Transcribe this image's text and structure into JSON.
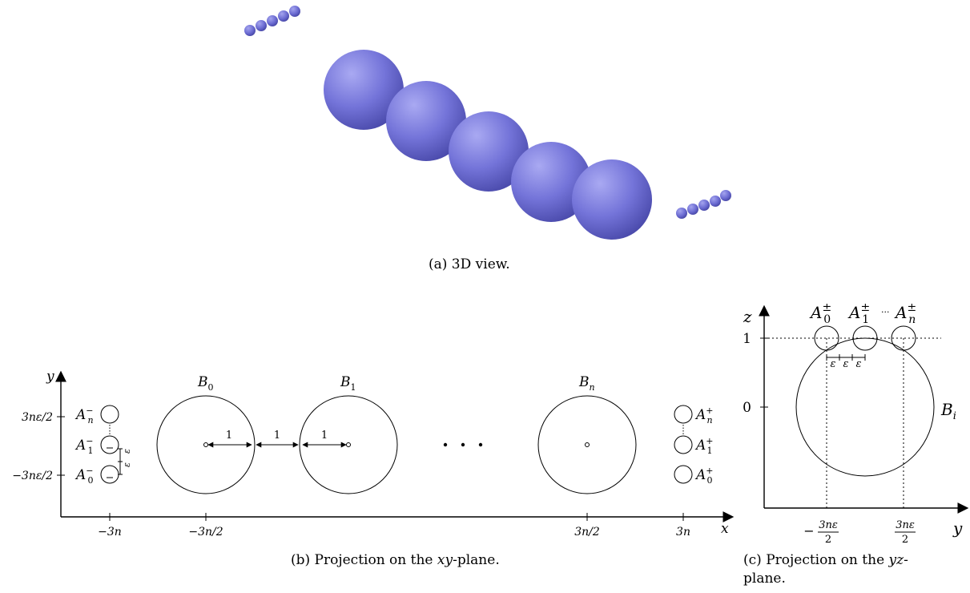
{
  "colors": {
    "sphere_base": "#6f6fd8",
    "sphere_light": "#b3b3f5",
    "sphere_dark": "#4646a8"
  },
  "panel_a": {
    "caption": "(a) 3D view."
  },
  "panel_b": {
    "caption_prefix": "(b) Projection on the ",
    "caption_var": "xy",
    "caption_suffix": "-plane.",
    "axis_x": "x",
    "axis_y": "y",
    "y_tick_top": "3nε/2",
    "y_tick_bottom": "−3nε/2",
    "x_ticks": [
      "−3n",
      "−3n/2",
      "3n/2",
      "3n"
    ],
    "left_labels": [
      {
        "base": "A",
        "sub": "n",
        "sup": "−"
      },
      {
        "base": "A",
        "sub": "1",
        "sup": "−"
      },
      {
        "base": "A",
        "sub": "0",
        "sup": "−"
      }
    ],
    "right_labels": [
      {
        "base": "A",
        "sub": "n",
        "sup": "+"
      },
      {
        "base": "A",
        "sub": "1",
        "sup": "+"
      },
      {
        "base": "A",
        "sub": "0",
        "sup": "+"
      }
    ],
    "eps_labels": [
      "ε",
      "ε"
    ],
    "big_labels": [
      {
        "base": "B",
        "sub": "0"
      },
      {
        "base": "B",
        "sub": "1"
      },
      {
        "base": "B",
        "sub": "n"
      }
    ],
    "distance_labels": [
      "1",
      "1",
      "1"
    ]
  },
  "panel_c": {
    "caption_line1_prefix": "(c) Projection on the ",
    "caption_line1_var": "yz",
    "caption_line1_suffix": "-",
    "caption_line2": "plane.",
    "axis_z": "z",
    "axis_y": "y",
    "z_tick_1": "1",
    "z_tick_0": "0",
    "y_tick_left_num": "3nε",
    "y_tick_left_den": "2",
    "y_tick_left_sign": "−",
    "y_tick_right_num": "3nε",
    "y_tick_right_den": "2",
    "top_labels": [
      {
        "base": "A",
        "sub": "0",
        "sup": "±"
      },
      {
        "base": "A",
        "sub": "1",
        "sup": "±"
      },
      {
        "base": "A",
        "sub": "n",
        "sup": "±"
      }
    ],
    "top_dots": "···",
    "big_label": {
      "base": "B",
      "sub": "i"
    },
    "eps_labels": [
      "ε",
      "ε",
      "ε"
    ]
  }
}
